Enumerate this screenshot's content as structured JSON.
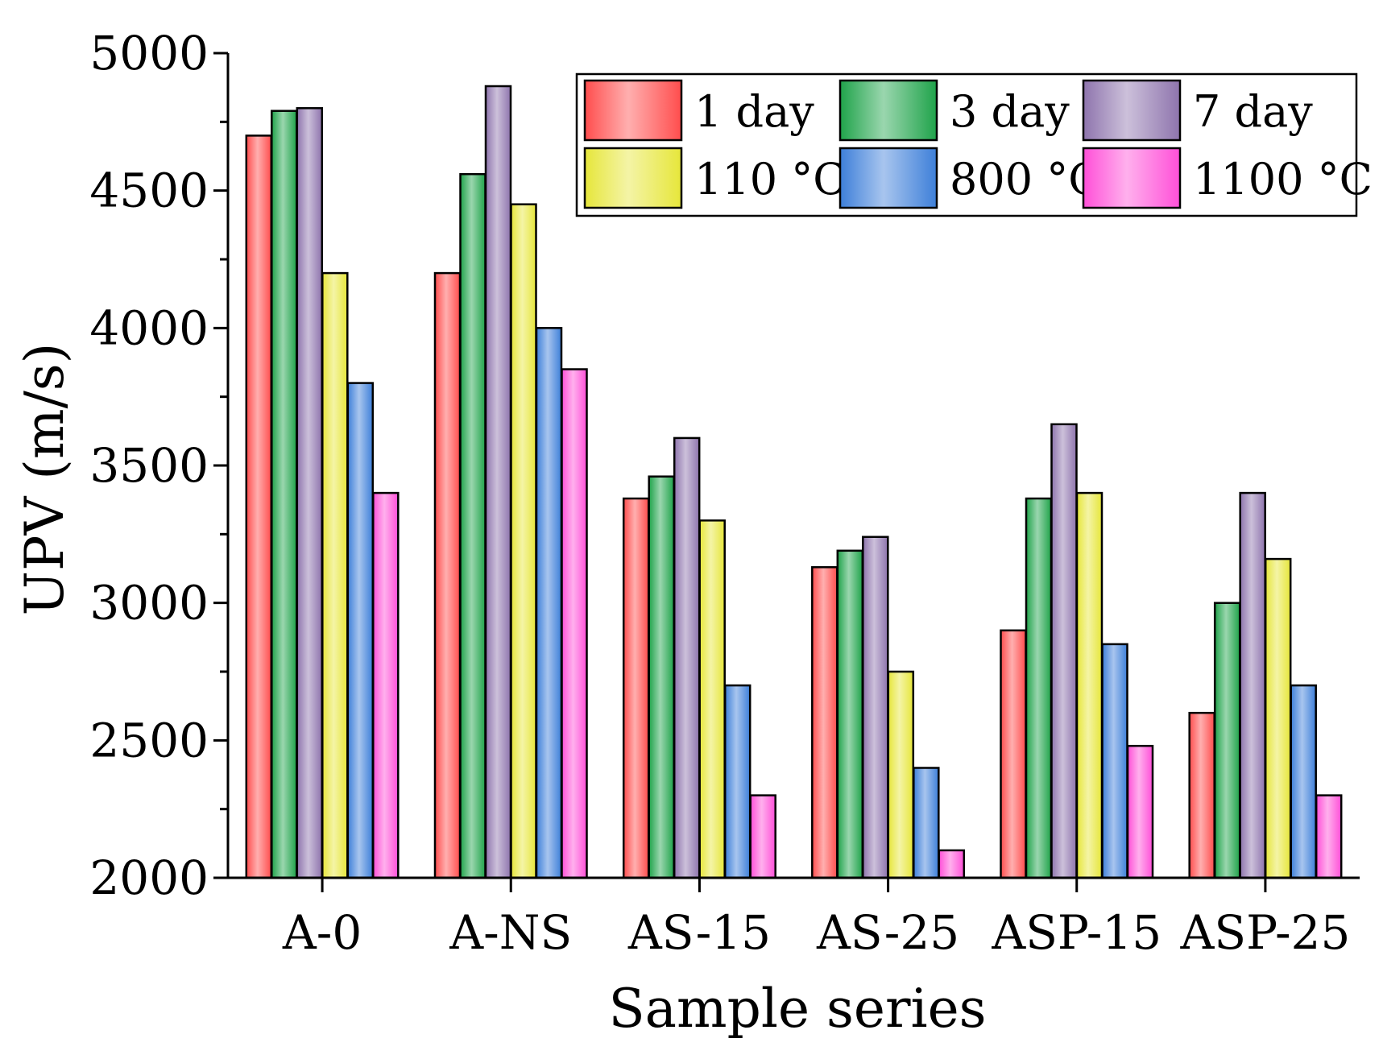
{
  "chart_data": {
    "type": "bar",
    "title": "",
    "xlabel": "Sample series",
    "ylabel": "UPV (m/s)",
    "ylim": [
      2000,
      5000
    ],
    "yticks": [
      2000,
      2500,
      3000,
      3500,
      4000,
      4500,
      5000
    ],
    "grid": false,
    "legend_position": "top-right",
    "categories": [
      "A-0",
      "A-NS",
      "AS-15",
      "AS-25",
      "ASP-15",
      "ASP-25"
    ],
    "series": [
      {
        "name": "1 day",
        "color": "#ff4d4d",
        "values": [
          4700,
          4200,
          3380,
          3130,
          2900,
          2600
        ]
      },
      {
        "name": "3 day",
        "color": "#1fa34a",
        "values": [
          4790,
          4560,
          3460,
          3190,
          3380,
          3000
        ]
      },
      {
        "name": "7 day",
        "color": "#8e74ad",
        "values": [
          4800,
          4880,
          3600,
          3240,
          3650,
          3400
        ]
      },
      {
        "name": "110 °C",
        "color": "#e6e63a",
        "values": [
          4200,
          4450,
          3300,
          2750,
          3400,
          3160
        ]
      },
      {
        "name": "800 °C",
        "color": "#3d7fd9",
        "values": [
          3800,
          4000,
          2700,
          2400,
          2850,
          2700
        ]
      },
      {
        "name": "1100 °C",
        "color": "#ff4fd8",
        "values": [
          3400,
          3850,
          2300,
          2100,
          2480,
          2300
        ]
      }
    ]
  }
}
